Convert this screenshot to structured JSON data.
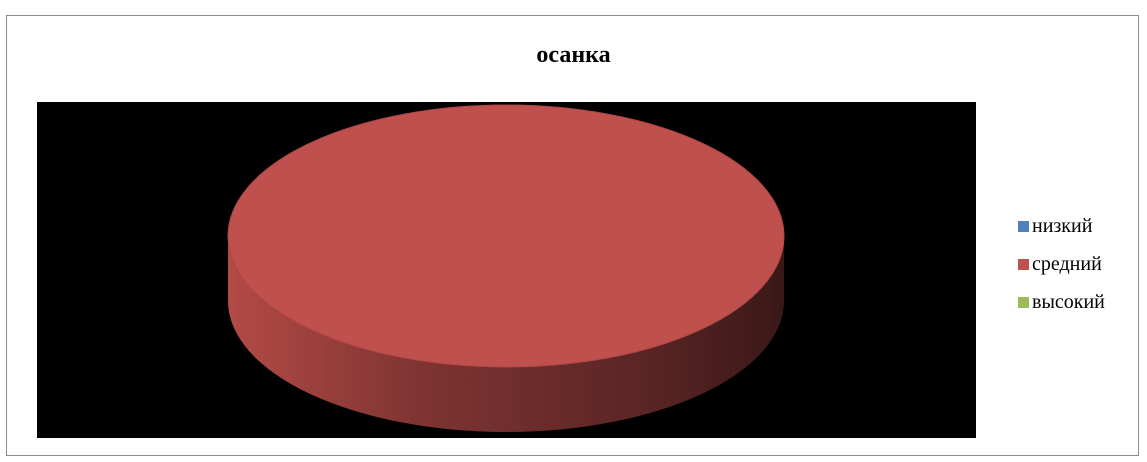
{
  "chart_data": {
    "type": "pie",
    "title": "осанка",
    "categories": [
      "низкий",
      "средний",
      "высокий"
    ],
    "values": [
      0,
      1,
      0
    ],
    "colors": [
      "#4f81bd",
      "#c0504d",
      "#9bbb59"
    ],
    "style": "3d",
    "plot_background": "#000000",
    "legend": {
      "position": "right"
    }
  }
}
